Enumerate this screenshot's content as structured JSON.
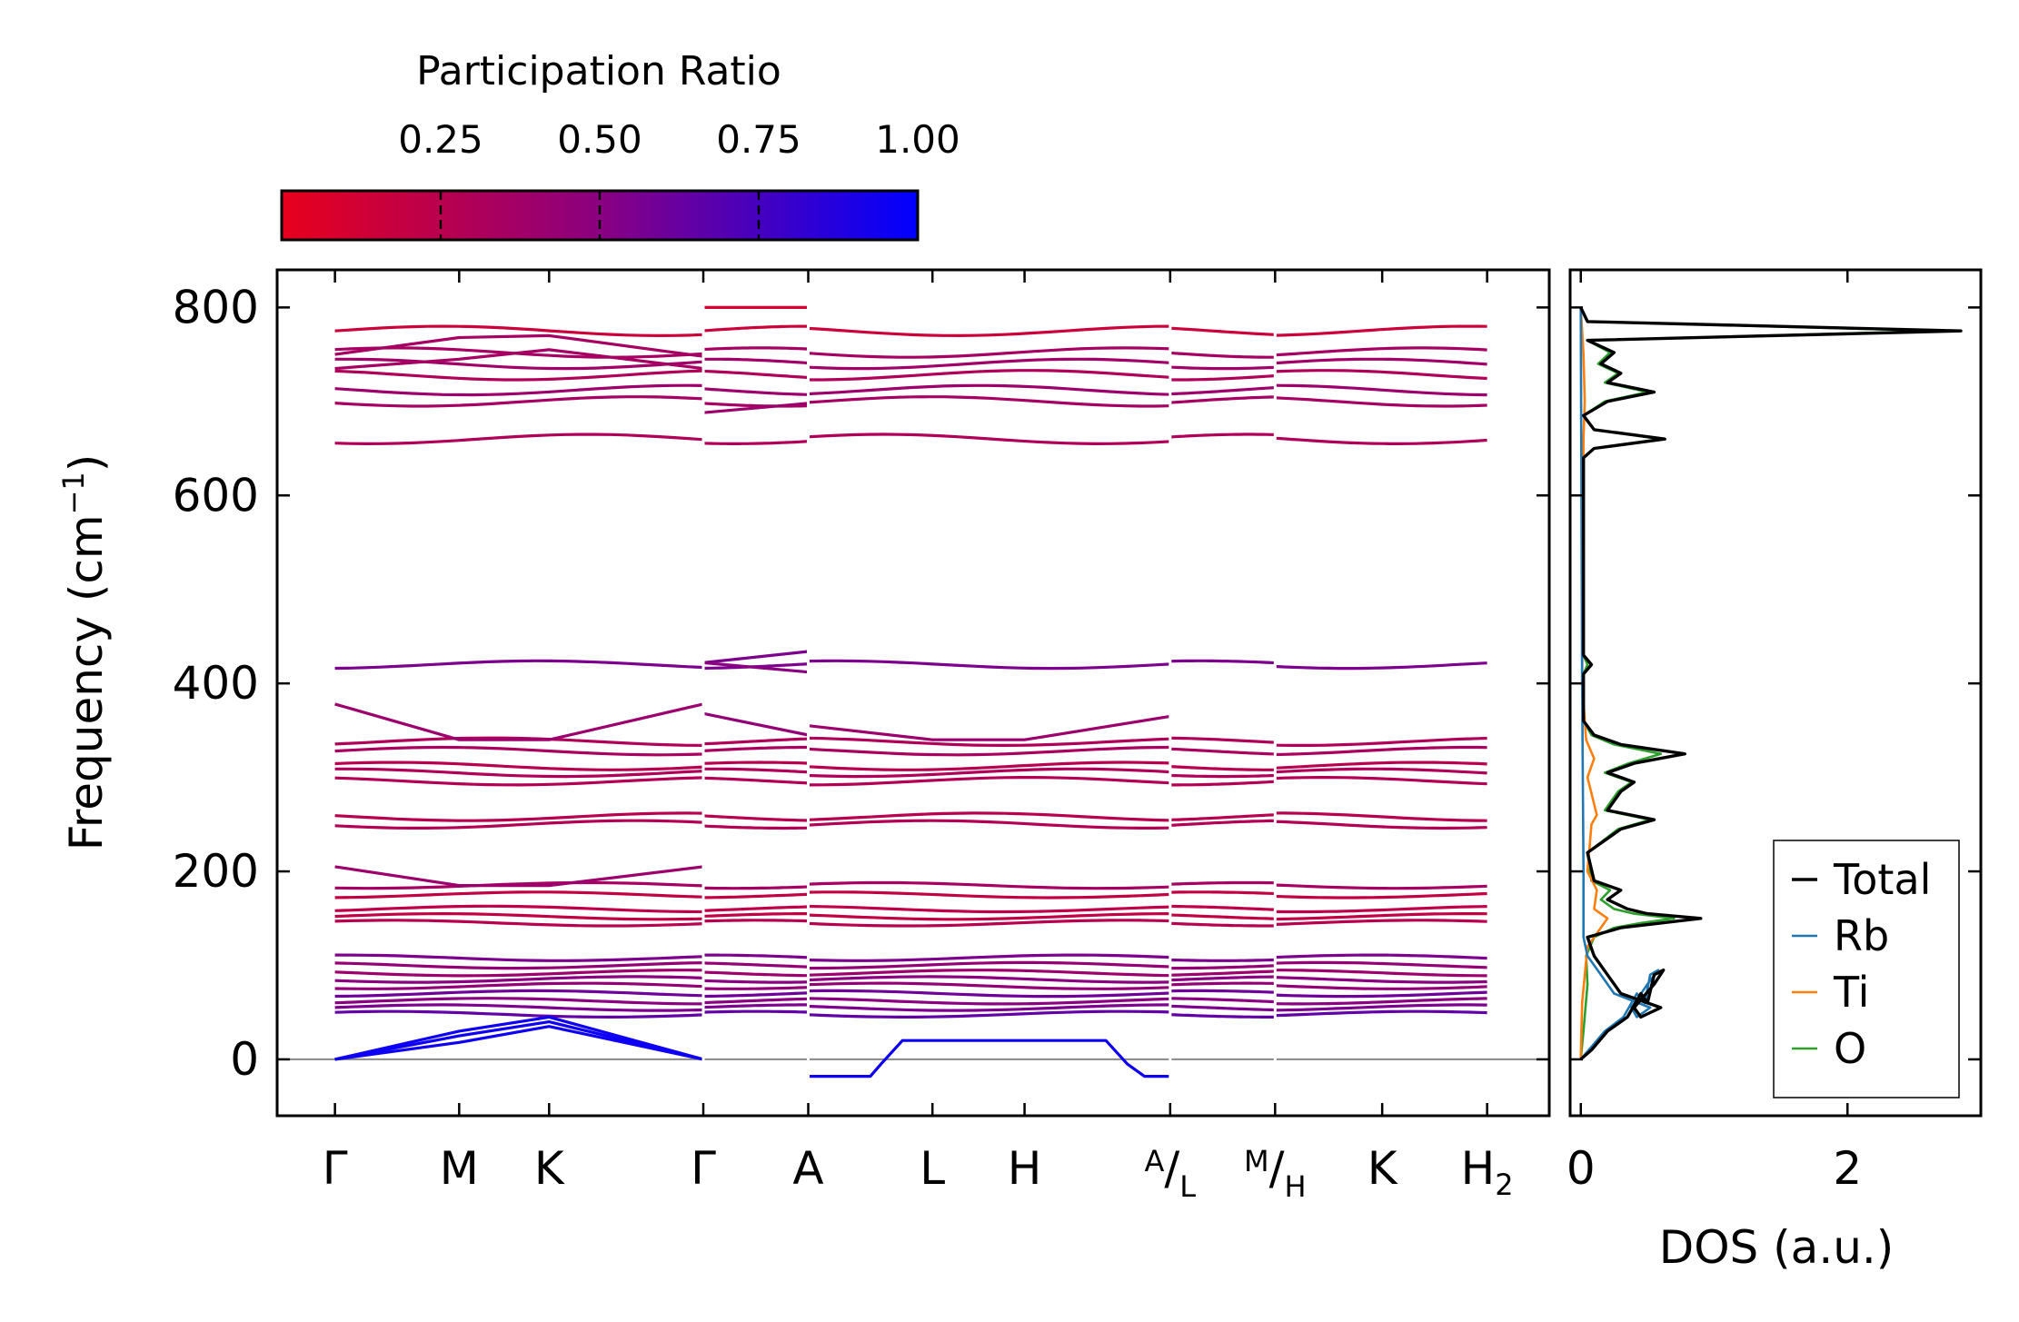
{
  "chart_data": [
    {
      "type": "line",
      "name": "phonon-band-structure",
      "ylabel_main": "Frequency (cm",
      "ylabel_sup": "−1",
      "ylabel_close": ")",
      "ylim": [
        -60,
        840
      ],
      "yticks": [
        "0",
        "200",
        "400",
        "600",
        "800"
      ],
      "ytick_values": [
        0,
        200,
        400,
        600,
        800
      ],
      "kpath_labels": [
        {
          "main": "Γ",
          "pre": "",
          "sub": "",
          "k": 0.0
        },
        {
          "main": "M",
          "pre": "",
          "sub": "",
          "k": 0.58
        },
        {
          "main": "K",
          "pre": "",
          "sub": "",
          "k": 1.0
        },
        {
          "main": "Γ",
          "pre": "",
          "sub": "",
          "k": 1.72
        },
        {
          "main": "A",
          "pre": "",
          "sub": "",
          "k": 2.21
        },
        {
          "main": "L",
          "pre": "",
          "sub": "",
          "k": 2.79
        },
        {
          "main": "H",
          "pre": "",
          "sub": "",
          "k": 3.22
        },
        {
          "main": "/",
          "pre": "A",
          "sub": "L",
          "k": 3.9
        },
        {
          "main": "/",
          "pre": "M",
          "sub": "H",
          "k": 4.39
        },
        {
          "main": "K",
          "pre": "",
          "sub": "",
          "k": 4.89
        },
        {
          "main": "H",
          "pre": "",
          "sub": "2",
          "k": 5.38
        }
      ],
      "xlim": [
        -0.27,
        5.67
      ],
      "segments": [
        [
          0.0,
          1.72
        ],
        [
          1.72,
          2.21
        ],
        [
          2.21,
          3.9
        ],
        [
          3.9,
          4.39
        ],
        [
          4.39,
          5.38
        ]
      ],
      "flat_bands": [
        {
          "freq": 775,
          "pr": 0.15
        },
        {
          "freq": 752,
          "pr": 0.35
        },
        {
          "freq": 740,
          "pr": 0.38
        },
        {
          "freq": 728,
          "pr": 0.3
        },
        {
          "freq": 712,
          "pr": 0.4
        },
        {
          "freq": 700,
          "pr": 0.35
        },
        {
          "freq": 660,
          "pr": 0.3
        },
        {
          "freq": 420,
          "pr": 0.55
        },
        {
          "freq": 338,
          "pr": 0.3
        },
        {
          "freq": 328,
          "pr": 0.33
        },
        {
          "freq": 312,
          "pr": 0.25
        },
        {
          "freq": 305,
          "pr": 0.3
        },
        {
          "freq": 296,
          "pr": 0.28
        },
        {
          "freq": 258,
          "pr": 0.25
        },
        {
          "freq": 250,
          "pr": 0.28
        },
        {
          "freq": 185,
          "pr": 0.35
        },
        {
          "freq": 175,
          "pr": 0.2
        },
        {
          "freq": 160,
          "pr": 0.22
        },
        {
          "freq": 152,
          "pr": 0.2
        },
        {
          "freq": 145,
          "pr": 0.25
        },
        {
          "freq": 108,
          "pr": 0.55
        },
        {
          "freq": 100,
          "pr": 0.45
        },
        {
          "freq": 92,
          "pr": 0.4
        },
        {
          "freq": 85,
          "pr": 0.5
        },
        {
          "freq": 78,
          "pr": 0.45
        },
        {
          "freq": 70,
          "pr": 0.6
        },
        {
          "freq": 62,
          "pr": 0.5
        },
        {
          "freq": 55,
          "pr": 0.55
        },
        {
          "freq": 48,
          "pr": 0.65
        }
      ],
      "dispersive_bands": [
        {
          "name": "band-upper-dispersive",
          "points": [
            [
              0,
              750
            ],
            [
              0.58,
              768
            ],
            [
              1.0,
              770
            ],
            [
              1.72,
              748
            ]
          ],
          "pr": 0.35
        },
        {
          "name": "band-upper-dispersive-2",
          "points": [
            [
              0,
              735
            ],
            [
              0.58,
              745
            ],
            [
              1.0,
              755
            ],
            [
              1.72,
              735
            ]
          ],
          "pr": 0.35
        },
        {
          "name": "band-gamma-a-800",
          "points": [
            [
              1.72,
              800
            ],
            [
              2.21,
              800
            ]
          ],
          "pr": 0.1
        },
        {
          "name": "band-gamma-a-688",
          "points": [
            [
              1.72,
              688
            ],
            [
              2.21,
              698
            ]
          ],
          "pr": 0.4
        },
        {
          "name": "band-380",
          "points": [
            [
              0,
              378
            ],
            [
              0.58,
              340
            ],
            [
              1.0,
              340
            ],
            [
              1.72,
              378
            ]
          ],
          "pr": 0.4
        },
        {
          "name": "band-205",
          "points": [
            [
              0,
              205
            ],
            [
              0.58,
              185
            ],
            [
              1.0,
              185
            ],
            [
              1.72,
              205
            ]
          ],
          "pr": 0.4
        },
        {
          "name": "band-a-422",
          "points": [
            [
              1.72,
              422
            ],
            [
              2.21,
              434
            ]
          ],
          "pr": 0.55
        },
        {
          "name": "band-a-412",
          "points": [
            [
              1.72,
              422
            ],
            [
              2.21,
              412
            ]
          ],
          "pr": 0.5
        },
        {
          "name": "band-a-368",
          "points": [
            [
              1.72,
              368
            ],
            [
              2.21,
              345
            ]
          ],
          "pr": 0.45
        },
        {
          "name": "band-l-362",
          "points": [
            [
              2.21,
              355
            ],
            [
              2.79,
              340
            ],
            [
              3.22,
              340
            ],
            [
              3.9,
              365
            ]
          ],
          "pr": 0.4
        },
        {
          "name": "band-acoustic-1",
          "points": [
            [
              0,
              0
            ],
            [
              0.58,
              30
            ],
            [
              1.0,
              45
            ],
            [
              1.72,
              0
            ]
          ],
          "pr": 0.95
        },
        {
          "name": "band-acoustic-2",
          "points": [
            [
              0,
              0
            ],
            [
              0.58,
              25
            ],
            [
              1.0,
              40
            ],
            [
              1.72,
              0
            ]
          ],
          "pr": 0.95
        },
        {
          "name": "band-acoustic-3",
          "points": [
            [
              0,
              0
            ],
            [
              0.58,
              18
            ],
            [
              1.0,
              35
            ],
            [
              1.72,
              0
            ]
          ],
          "pr": 0.95
        },
        {
          "name": "band-imag",
          "points": [
            [
              2.21,
              -18
            ],
            [
              2.5,
              -18
            ],
            [
              2.55,
              -5
            ],
            [
              2.65,
              20
            ],
            [
              3.6,
              20
            ],
            [
              3.7,
              -5
            ],
            [
              3.78,
              -18
            ],
            [
              3.9,
              -18
            ]
          ],
          "pr": 0.95
        }
      ],
      "colorbar": {
        "label": "Participation Ratio",
        "ticks": [
          "0.25",
          "0.50",
          "0.75",
          "1.00"
        ],
        "tick_values": [
          0.25,
          0.5,
          0.75,
          1.0
        ],
        "range": [
          0.0,
          1.0
        ],
        "low_color": "#e8001c",
        "high_color": "#0000ff"
      },
      "axis_color": "#888888"
    },
    {
      "type": "line",
      "name": "phonon-dos",
      "xlabel": "DOS (a.u.)",
      "xlim": [
        -0.08,
        3.0
      ],
      "xticks": [
        "0",
        "2"
      ],
      "xtick_values": [
        0,
        2
      ],
      "series": [
        {
          "name": "Total",
          "color": "#000000",
          "points": [
            [
              0,
              0
            ],
            [
              0.08,
              10
            ],
            [
              0.2,
              30
            ],
            [
              0.35,
              45
            ],
            [
              0.45,
              70
            ],
            [
              0.5,
              60
            ],
            [
              0.55,
              90
            ],
            [
              0.62,
              95
            ],
            [
              0.55,
              80
            ],
            [
              0.4,
              55
            ],
            [
              0.45,
              45
            ],
            [
              0.6,
              55
            ],
            [
              0.3,
              70
            ],
            [
              0.2,
              90
            ],
            [
              0.1,
              110
            ],
            [
              0.05,
              130
            ],
            [
              0.3,
              140
            ],
            [
              0.6,
              145
            ],
            [
              0.9,
              150
            ],
            [
              0.5,
              155
            ],
            [
              0.35,
              160
            ],
            [
              0.2,
              170
            ],
            [
              0.3,
              180
            ],
            [
              0.1,
              190
            ],
            [
              0.05,
              220
            ],
            [
              0.3,
              245
            ],
            [
              0.55,
              255
            ],
            [
              0.2,
              265
            ],
            [
              0.3,
              285
            ],
            [
              0.4,
              295
            ],
            [
              0.2,
              305
            ],
            [
              0.4,
              315
            ],
            [
              0.78,
              325
            ],
            [
              0.3,
              335
            ],
            [
              0.1,
              345
            ],
            [
              0.02,
              360
            ],
            [
              0.02,
              410
            ],
            [
              0.08,
              420
            ],
            [
              0.02,
              430
            ],
            [
              0.02,
              640
            ],
            [
              0.1,
              650
            ],
            [
              0.63,
              660
            ],
            [
              0.1,
              670
            ],
            [
              0.02,
              685
            ],
            [
              0.2,
              700
            ],
            [
              0.55,
              710
            ],
            [
              0.2,
              720
            ],
            [
              0.3,
              730
            ],
            [
              0.15,
              740
            ],
            [
              0.25,
              752
            ],
            [
              0.05,
              765
            ],
            [
              2.85,
              775
            ],
            [
              0.05,
              785
            ],
            [
              0.0,
              800
            ]
          ]
        },
        {
          "name": "Rb",
          "color": "#1f77b4",
          "points": [
            [
              0,
              0
            ],
            [
              0.06,
              10
            ],
            [
              0.18,
              30
            ],
            [
              0.32,
              45
            ],
            [
              0.42,
              70
            ],
            [
              0.48,
              60
            ],
            [
              0.52,
              90
            ],
            [
              0.58,
              95
            ],
            [
              0.5,
              80
            ],
            [
              0.38,
              55
            ],
            [
              0.42,
              45
            ],
            [
              0.52,
              55
            ],
            [
              0.25,
              70
            ],
            [
              0.15,
              90
            ],
            [
              0.05,
              110
            ],
            [
              0.02,
              130
            ],
            [
              0.02,
              200
            ],
            [
              0.01,
              400
            ],
            [
              0.0,
              800
            ]
          ]
        },
        {
          "name": "Ti",
          "color": "#ff7f0e",
          "points": [
            [
              0,
              0
            ],
            [
              0.01,
              60
            ],
            [
              0.05,
              120
            ],
            [
              0.15,
              140
            ],
            [
              0.2,
              150
            ],
            [
              0.1,
              160
            ],
            [
              0.12,
              180
            ],
            [
              0.05,
              200
            ],
            [
              0.08,
              250
            ],
            [
              0.12,
              260
            ],
            [
              0.05,
              300
            ],
            [
              0.1,
              320
            ],
            [
              0.04,
              340
            ],
            [
              0.01,
              400
            ],
            [
              0.02,
              660
            ],
            [
              0.03,
              700
            ],
            [
              0.02,
              750
            ],
            [
              0.0,
              800
            ]
          ]
        },
        {
          "name": "O",
          "color": "#2ca02c",
          "points": [
            [
              0,
              0
            ],
            [
              0.02,
              30
            ],
            [
              0.05,
              80
            ],
            [
              0.04,
              110
            ],
            [
              0.1,
              130
            ],
            [
              0.25,
              140
            ],
            [
              0.45,
              145
            ],
            [
              0.7,
              150
            ],
            [
              0.4,
              155
            ],
            [
              0.25,
              160
            ],
            [
              0.15,
              170
            ],
            [
              0.22,
              180
            ],
            [
              0.08,
              190
            ],
            [
              0.05,
              220
            ],
            [
              0.28,
              245
            ],
            [
              0.52,
              255
            ],
            [
              0.18,
              265
            ],
            [
              0.28,
              285
            ],
            [
              0.38,
              295
            ],
            [
              0.18,
              305
            ],
            [
              0.36,
              315
            ],
            [
              0.6,
              325
            ],
            [
              0.25,
              335
            ],
            [
              0.08,
              345
            ],
            [
              0.02,
              360
            ],
            [
              0.02,
              410
            ],
            [
              0.05,
              420
            ],
            [
              0.02,
              430
            ],
            [
              0.02,
              640
            ],
            [
              0.1,
              650
            ],
            [
              0.6,
              660
            ],
            [
              0.1,
              670
            ],
            [
              0.02,
              685
            ],
            [
              0.18,
              700
            ],
            [
              0.5,
              710
            ],
            [
              0.18,
              720
            ],
            [
              0.28,
              730
            ],
            [
              0.13,
              740
            ],
            [
              0.22,
              752
            ],
            [
              0.05,
              765
            ],
            [
              2.7,
              775
            ],
            [
              0.05,
              785
            ],
            [
              0.0,
              800
            ]
          ]
        }
      ],
      "legend": {
        "placement": "bottom-right",
        "entries": [
          "Total",
          "Rb",
          "Ti",
          "O"
        ]
      }
    }
  ]
}
